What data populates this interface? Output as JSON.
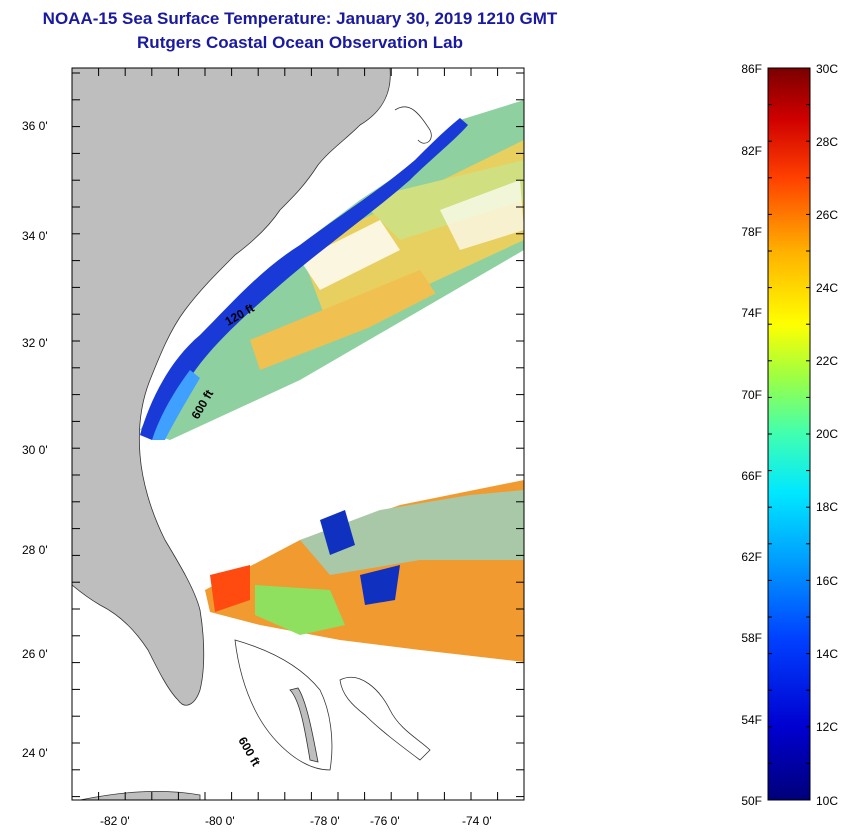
{
  "title_line1": "NOAA-15 Sea Surface Temperature:  January 30, 2019 1210 GMT",
  "title_line2": "Rutgers Coastal Ocean Observation Lab",
  "colors": {
    "land": "#bebebe",
    "title": "#1a1aa0"
  },
  "map": {
    "lat_labels": [
      "36 0'",
      "34 0'",
      "32 0'",
      "30 0'",
      "28 0'",
      "26 0'",
      "24 0'"
    ],
    "lon_labels": [
      "-82 0'",
      "-80 0'",
      "-78 0'",
      "-76 0'",
      "-74 0'"
    ],
    "isobath_labels": [
      "120 ft",
      "600 ft",
      "600 ft"
    ]
  },
  "colorbar": {
    "f_labels": [
      "86F",
      "82F",
      "78F",
      "74F",
      "70F",
      "66F",
      "62F",
      "58F",
      "54F",
      "50F"
    ],
    "c_labels": [
      "30C",
      "28C",
      "26C",
      "24C",
      "22C",
      "20C",
      "18C",
      "16C",
      "14C",
      "12C",
      "10C"
    ]
  }
}
